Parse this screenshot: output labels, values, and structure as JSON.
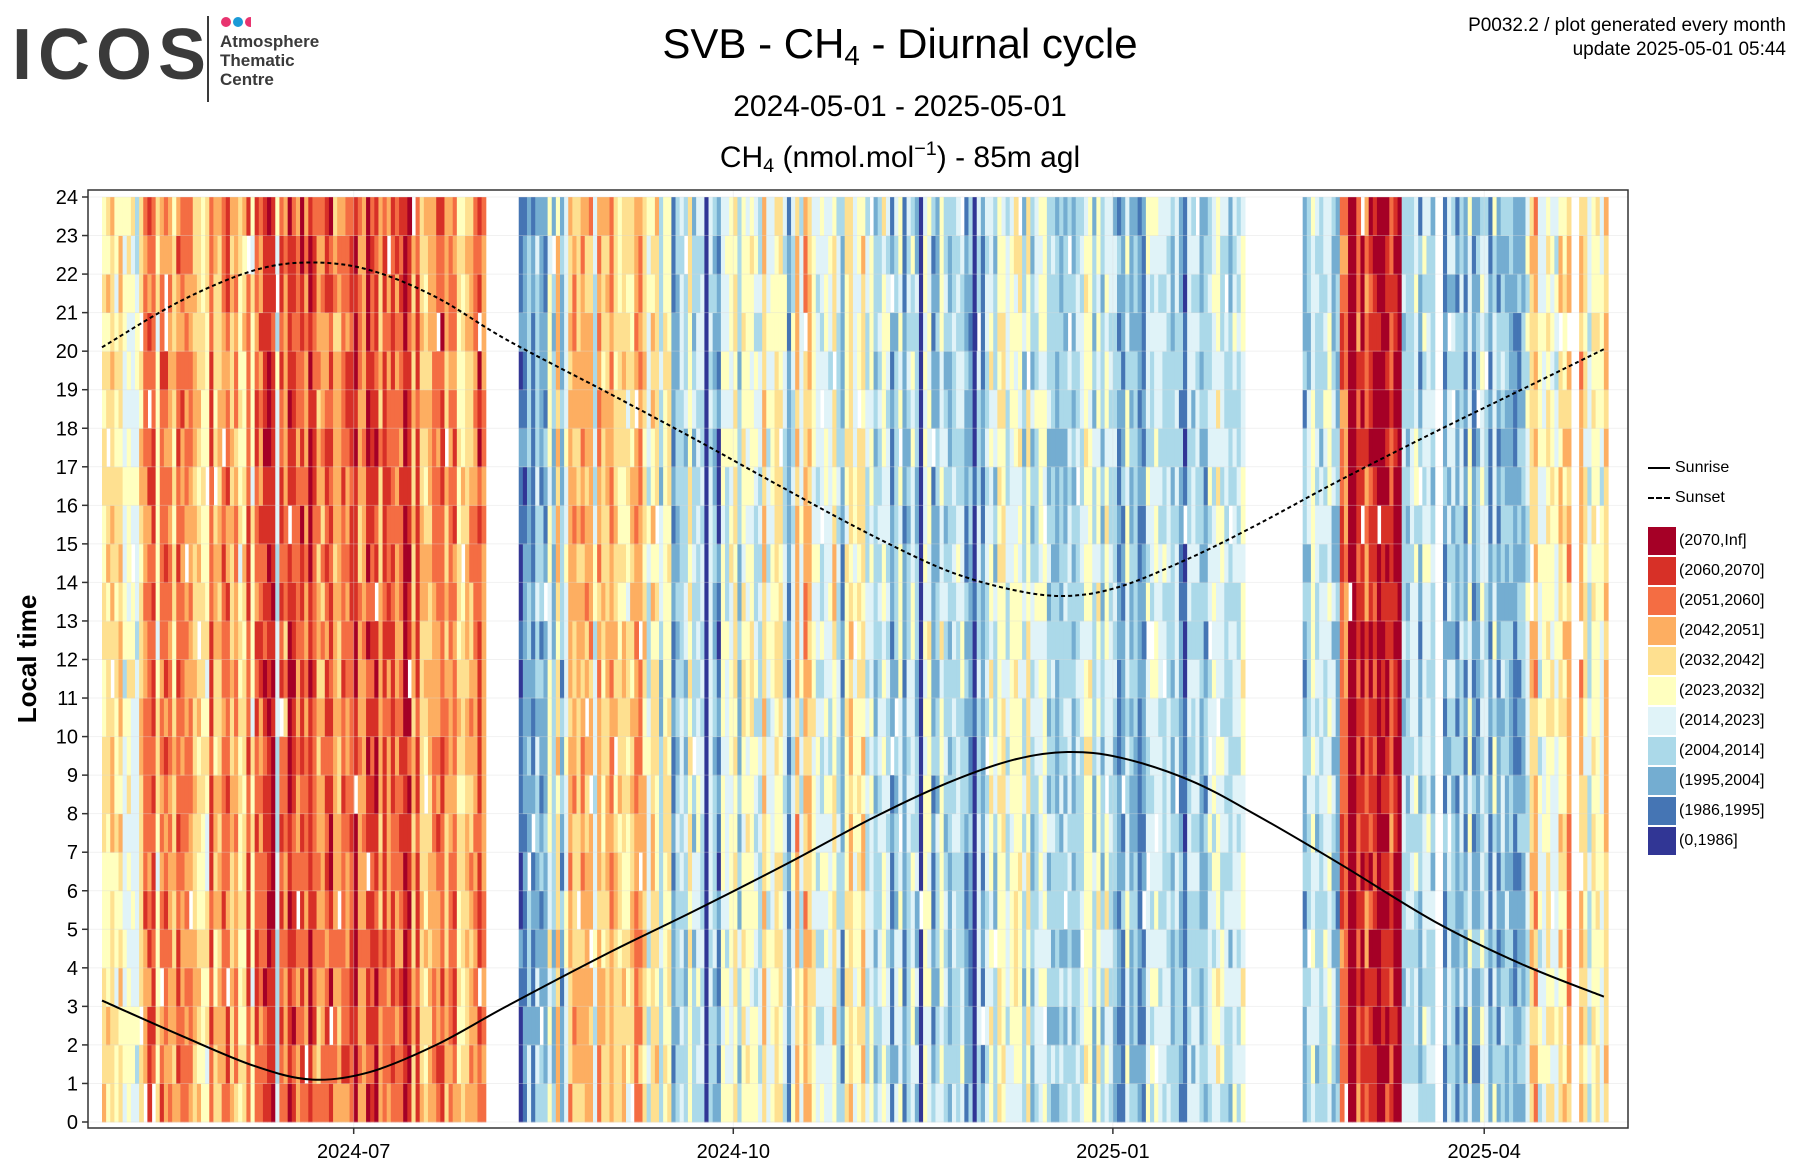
{
  "header": {
    "logo_text": "ICOS",
    "logo_sub": [
      "Atmosphere",
      "Thematic",
      "Centre"
    ],
    "logo_dot_colors": [
      "#e8346f",
      "#1a9ad7",
      "#e8346f"
    ],
    "meta_line1": "P0032.2 / plot generated every month",
    "meta_line2": "update  2025-05-01 05:44",
    "title_pre": "SVB - CH",
    "title_sub": "4",
    "title_post": " - Diurnal cycle",
    "subtitle": "2024-05-01 - 2025-05-01",
    "unit_pre": "CH",
    "unit_sub": "4",
    "unit_mid": " (nmol.mol",
    "unit_sup": "−1",
    "unit_post": ") - 85m agl"
  },
  "chart_data": {
    "type": "heatmap",
    "title": "SVB - CH4 - Diurnal cycle",
    "xlabel": "",
    "ylabel": "Local time",
    "x_range": [
      "2024-05-01",
      "2025-05-01"
    ],
    "ylim": [
      0,
      24
    ],
    "x_ticks": [
      "2024-07",
      "2024-10",
      "2025-01",
      "2025-04"
    ],
    "y_ticks": [
      0,
      1,
      2,
      3,
      4,
      5,
      6,
      7,
      8,
      9,
      10,
      11,
      12,
      13,
      14,
      15,
      16,
      17,
      18,
      19,
      20,
      21,
      22,
      23,
      24
    ],
    "grid": true,
    "legend_position": "right",
    "bins": [
      {
        "label": "(2070,Inf]",
        "color": "#a50026"
      },
      {
        "label": "(2060,2070]",
        "color": "#d73027"
      },
      {
        "label": "(2051,2060]",
        "color": "#f46d43"
      },
      {
        "label": "(2042,2051]",
        "color": "#fdae61"
      },
      {
        "label": "(2032,2042]",
        "color": "#fee090"
      },
      {
        "label": "(2023,2032]",
        "color": "#ffffbf"
      },
      {
        "label": "(2014,2023]",
        "color": "#e0f3f8"
      },
      {
        "label": "(2004,2014]",
        "color": "#abd9e9"
      },
      {
        "label": "(1995,2004]",
        "color": "#74add1"
      },
      {
        "label": "(1986,1995]",
        "color": "#4575b4"
      },
      {
        "label": "(0,1986]",
        "color": "#313695"
      }
    ],
    "lines": [
      {
        "name": "Sunrise",
        "style": "solid",
        "x": [
          "2024-05-01",
          "2024-05-20",
          "2024-06-07",
          "2024-06-21",
          "2024-07-05",
          "2024-07-21",
          "2024-08-07",
          "2024-09-01",
          "2024-09-22",
          "2024-10-14",
          "2024-11-04",
          "2024-11-22",
          "2024-12-08",
          "2024-12-21",
          "2025-01-03",
          "2025-01-20",
          "2025-02-05",
          "2025-02-25",
          "2025-03-20",
          "2025-04-10",
          "2025-04-30"
        ],
        "y": [
          3.15,
          2.25,
          1.45,
          1.1,
          1.3,
          2.0,
          3.0,
          4.4,
          5.5,
          6.7,
          7.9,
          8.8,
          9.4,
          9.6,
          9.45,
          8.85,
          7.95,
          6.7,
          5.2,
          4.1,
          3.25
        ]
      },
      {
        "name": "Sunset",
        "style": "dashed",
        "x": [
          "2024-05-01",
          "2024-05-20",
          "2024-06-07",
          "2024-06-21",
          "2024-07-05",
          "2024-07-21",
          "2024-08-07",
          "2024-09-01",
          "2024-09-22",
          "2024-10-14",
          "2024-11-04",
          "2024-11-22",
          "2024-12-08",
          "2024-12-21",
          "2025-01-03",
          "2025-01-20",
          "2025-02-05",
          "2025-02-25",
          "2025-03-20",
          "2025-04-10",
          "2025-04-30"
        ],
        "y": [
          20.1,
          21.3,
          22.1,
          22.3,
          22.1,
          21.4,
          20.3,
          18.9,
          17.7,
          16.4,
          15.2,
          14.3,
          13.8,
          13.65,
          13.9,
          14.65,
          15.5,
          16.65,
          17.9,
          19.0,
          20.05
        ]
      }
    ]
  }
}
